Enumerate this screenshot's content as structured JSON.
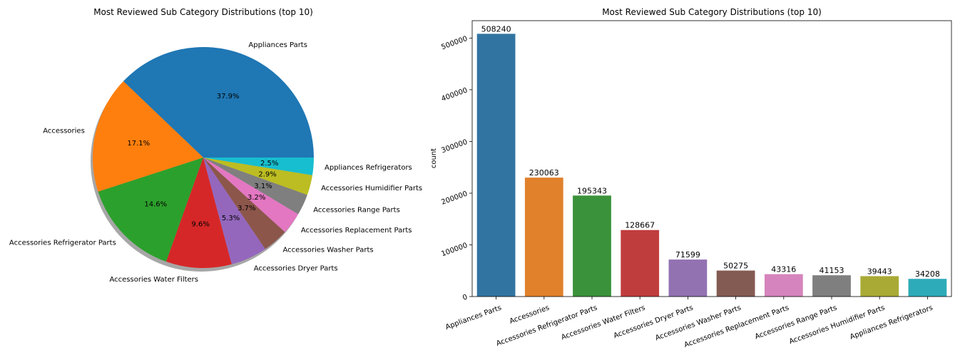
{
  "chart_data": [
    {
      "type": "pie",
      "title": "Most Reviewed Sub Category Distributions (top 10)",
      "labels": [
        "Appliances Parts",
        "Accessories",
        "Accessories Refrigerator Parts",
        "Accessories Water Filters",
        "Accessories Dryer Parts",
        "Accessories Washer Parts",
        "Accessories Replacement Parts",
        "Accessories Range Parts",
        "Accessories Humidifier Parts",
        "Appliances Refrigerators"
      ],
      "percent_labels": [
        "37.9%",
        "17.1%",
        "14.6%",
        "9.6%",
        "5.3%",
        "3.7%",
        "3.2%",
        "3.1%",
        "2.9%",
        "2.5%"
      ],
      "values": [
        508240,
        230063,
        195343,
        128667,
        71599,
        50275,
        43316,
        41153,
        39443,
        34208
      ],
      "colors": [
        "#1f77b4",
        "#ff7f0e",
        "#2ca02c",
        "#d62728",
        "#9467bd",
        "#8c564b",
        "#e377c2",
        "#7f7f7f",
        "#bcbd22",
        "#17becf"
      ],
      "shadow": true
    },
    {
      "type": "bar",
      "title": "Most Reviewed Sub Category Distributions (top 10)",
      "categories": [
        "Appliances Parts",
        "Accessories",
        "Accessories Refrigerator Parts",
        "Accessories Water Filters",
        "Accessories Dryer Parts",
        "Accessories Washer Parts",
        "Accessories Replacement Parts",
        "Accessories Range Parts",
        "Accessories Humidifier Parts",
        "Appliances Refrigerators"
      ],
      "values": [
        508240,
        230063,
        195343,
        128667,
        71599,
        50275,
        43316,
        41153,
        39443,
        34208
      ],
      "value_labels": [
        "508240",
        "230063",
        "195343",
        "128667",
        "71599",
        "50275",
        "43316",
        "41153",
        "39443",
        "34208"
      ],
      "colors": [
        "#3274a1",
        "#e1812c",
        "#3a923a",
        "#c03d3e",
        "#9372b2",
        "#845b53",
        "#d684bd",
        "#7f7f7f",
        "#a9aa35",
        "#2eabb8"
      ],
      "xlabel": "",
      "ylabel": "count",
      "ylim": [
        0,
        533652
      ],
      "yticks": [
        0,
        100000,
        200000,
        300000,
        400000,
        500000
      ],
      "ytick_labels": [
        "0",
        "100000",
        "200000",
        "300000",
        "400000",
        "500000"
      ],
      "grid": false
    }
  ]
}
